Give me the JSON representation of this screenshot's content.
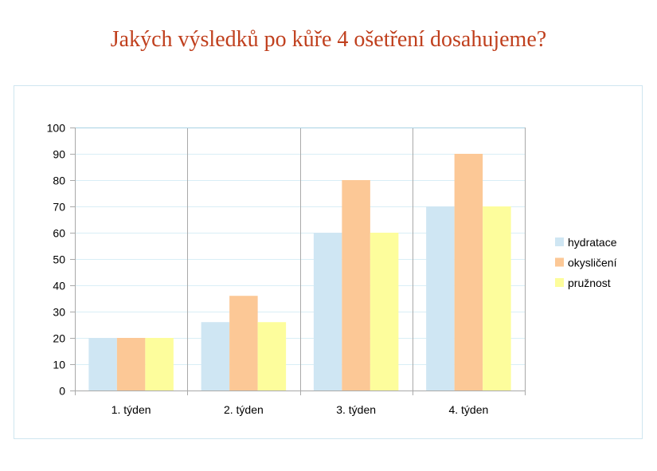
{
  "title": "Jakých výsledků po kůře 4 ošetření dosahujeme?",
  "chart_data": {
    "type": "bar",
    "categories": [
      "1. týden",
      "2. týden",
      "3. týden",
      "4. týden"
    ],
    "series": [
      {
        "name": "hydratace",
        "values": [
          20,
          26,
          60,
          70
        ],
        "color": "#cfe6f3"
      },
      {
        "name": "okysličení",
        "values": [
          20,
          36,
          80,
          90
        ],
        "color": "#fcc896"
      },
      {
        "name": "pružnost",
        "values": [
          20,
          26,
          60,
          70
        ],
        "color": "#fdfd9c"
      }
    ],
    "ylim": [
      0,
      100
    ],
    "yticks": [
      0,
      10,
      20,
      30,
      40,
      50,
      60,
      70,
      80,
      90,
      100
    ],
    "grid": true,
    "legend": "right",
    "colors": {
      "grid": "#d9eef6",
      "axis": "#a9a9a9",
      "title": "#c0401e"
    }
  }
}
